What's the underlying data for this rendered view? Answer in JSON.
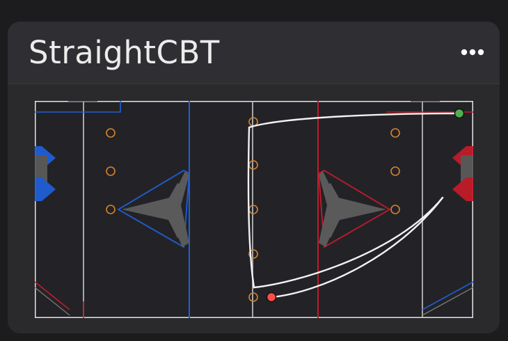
{
  "card": {
    "title": "StraightCBT",
    "more_icon": "more-horizontal-icon"
  },
  "field": {
    "alliance_colors": {
      "blue": "#1f5fd6",
      "red": "#c21b2a",
      "field_bg": "#232327",
      "lines": "#d9d9d9",
      "notes": "#d9822b",
      "charge_station": "#5a5a5a"
    },
    "path": {
      "color": "#f2f2f2",
      "start_marker_color": "#4caf50",
      "end_marker_color": "#ff4c4c"
    }
  }
}
